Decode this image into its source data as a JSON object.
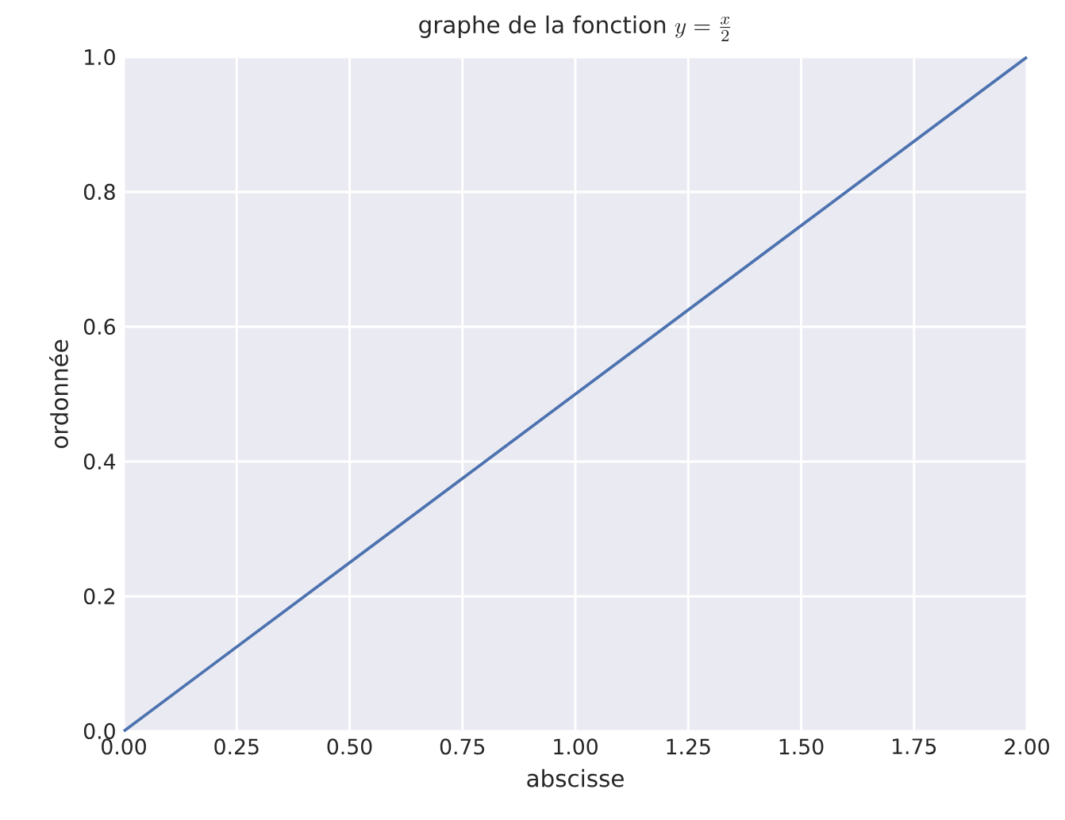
{
  "chart_data": {
    "type": "line",
    "title": "\\text{graphe de la fonction } y = \\frac{x}{2}",
    "xlabel": "abscisse",
    "ylabel": "ordonnée",
    "x": [
      0,
      2
    ],
    "series": [
      {
        "color": "#4c72b0",
        "values": [
          0,
          1
        ]
      }
    ],
    "xlim": [
      0,
      2
    ],
    "ylim": [
      0,
      1
    ],
    "xticks": [
      {
        "value": 0,
        "label": "0.00"
      },
      {
        "value": 0.25,
        "label": "0.25"
      },
      {
        "value": 0.5,
        "label": "0.50"
      },
      {
        "value": 0.75,
        "label": "0.75"
      },
      {
        "value": 1,
        "label": "1.00"
      },
      {
        "value": 1.25,
        "label": "1.25"
      },
      {
        "value": 1.5,
        "label": "1.50"
      },
      {
        "value": 1.75,
        "label": "1.75"
      },
      {
        "value": 2,
        "label": "2.00"
      }
    ],
    "yticks": [
      {
        "value": 0,
        "label": "0.0"
      },
      {
        "value": 0.2,
        "label": "0.2"
      },
      {
        "value": 0.4,
        "label": "0.4"
      },
      {
        "value": 0.6,
        "label": "0.6"
      },
      {
        "value": 0.8,
        "label": "0.8"
      },
      {
        "value": 1,
        "label": "1.0"
      }
    ],
    "grid": true
  }
}
